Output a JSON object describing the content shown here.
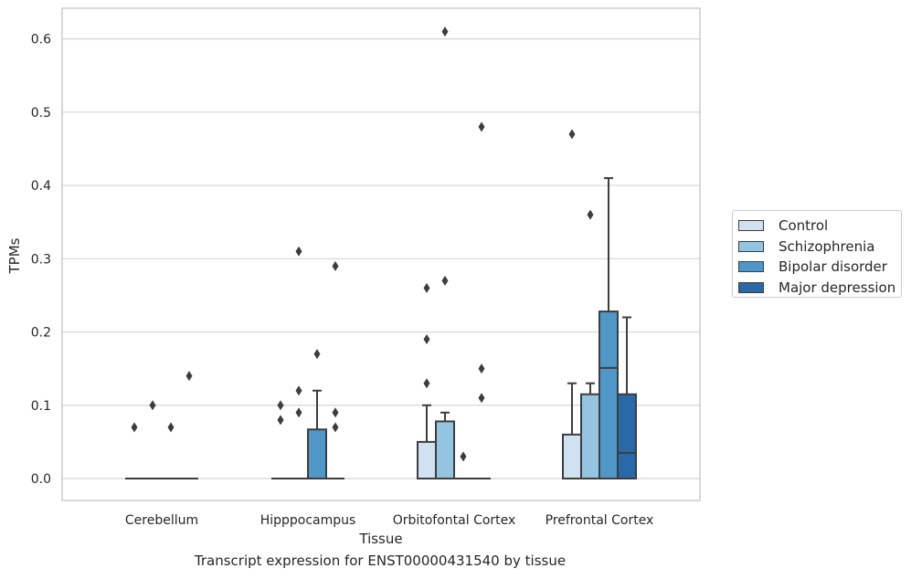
{
  "chart_data": {
    "type": "box",
    "title": "",
    "caption": "Transcript expression for ENST00000431540 by tissue",
    "xlabel": "Tissue",
    "ylabel": "TPMs",
    "ylim": [
      -0.03,
      0.64
    ],
    "yticks": [
      "0.0",
      "0.1",
      "0.2",
      "0.3",
      "0.4",
      "0.5",
      "0.6"
    ],
    "ytick_values": [
      0,
      0.1,
      0.2,
      0.3,
      0.4,
      0.5,
      0.6
    ],
    "grid": true,
    "legend_position": "right",
    "categories": [
      "Cerebellum",
      "Hipppocampus",
      "Orbitofontal Cortex",
      "Prefrontal Cortex"
    ],
    "series": [
      {
        "name": "Control",
        "color": "#d0e1f2",
        "boxes": [
          {
            "q1": 0,
            "median": 0,
            "q3": 0,
            "whisker_low": 0,
            "whisker_high": 0,
            "outliers": [
              0.07
            ]
          },
          {
            "q1": 0,
            "median": 0,
            "q3": 0,
            "whisker_low": 0,
            "whisker_high": 0,
            "outliers": [
              0.1,
              0.08
            ]
          },
          {
            "q1": 0,
            "median": 0,
            "q3": 0.05,
            "whisker_low": 0,
            "whisker_high": 0.1,
            "outliers": [
              0.26,
              0.19,
              0.13
            ]
          },
          {
            "q1": 0,
            "median": 0,
            "q3": 0.06,
            "whisker_low": 0,
            "whisker_high": 0.13,
            "outliers": [
              0.47
            ]
          }
        ]
      },
      {
        "name": "Schizophrenia",
        "color": "#94c4df",
        "boxes": [
          {
            "q1": 0,
            "median": 0,
            "q3": 0,
            "whisker_low": 0,
            "whisker_high": 0,
            "outliers": [
              0.1
            ]
          },
          {
            "q1": 0,
            "median": 0,
            "q3": 0,
            "whisker_low": 0,
            "whisker_high": 0,
            "outliers": [
              0.31,
              0.12,
              0.09
            ]
          },
          {
            "q1": 0,
            "median": 0,
            "q3": 0.078,
            "whisker_low": 0,
            "whisker_high": 0.09,
            "outliers": [
              0.61,
              0.27
            ]
          },
          {
            "q1": 0,
            "median": 0,
            "q3": 0.115,
            "whisker_low": 0,
            "whisker_high": 0.13,
            "outliers": [
              0.36
            ]
          }
        ]
      },
      {
        "name": "Bipolar disorder",
        "color": "#5097c7",
        "boxes": [
          {
            "q1": 0,
            "median": 0,
            "q3": 0,
            "whisker_low": 0,
            "whisker_high": 0,
            "outliers": [
              0.07
            ]
          },
          {
            "q1": 0,
            "median": 0,
            "q3": 0.067,
            "whisker_low": 0,
            "whisker_high": 0.12,
            "outliers": [
              0.17
            ]
          },
          {
            "q1": 0,
            "median": 0,
            "q3": 0,
            "whisker_low": 0,
            "whisker_high": 0,
            "outliers": [
              0.03
            ]
          },
          {
            "q1": 0,
            "median": 0.151,
            "q3": 0.228,
            "whisker_low": 0,
            "whisker_high": 0.41,
            "outliers": []
          }
        ]
      },
      {
        "name": "Major depression",
        "color": "#2a69a8",
        "boxes": [
          {
            "q1": 0,
            "median": 0,
            "q3": 0,
            "whisker_low": 0,
            "whisker_high": 0,
            "outliers": [
              0.14
            ]
          },
          {
            "q1": 0,
            "median": 0,
            "q3": 0,
            "whisker_low": 0,
            "whisker_high": 0,
            "outliers": [
              0.29,
              0.09,
              0.07
            ]
          },
          {
            "q1": 0,
            "median": 0,
            "q3": 0,
            "whisker_low": 0,
            "whisker_high": 0,
            "outliers": [
              0.48,
              0.15,
              0.11
            ]
          },
          {
            "q1": 0,
            "median": 0.035,
            "q3": 0.115,
            "whisker_low": 0,
            "whisker_high": 0.22,
            "outliers": []
          }
        ]
      }
    ]
  }
}
